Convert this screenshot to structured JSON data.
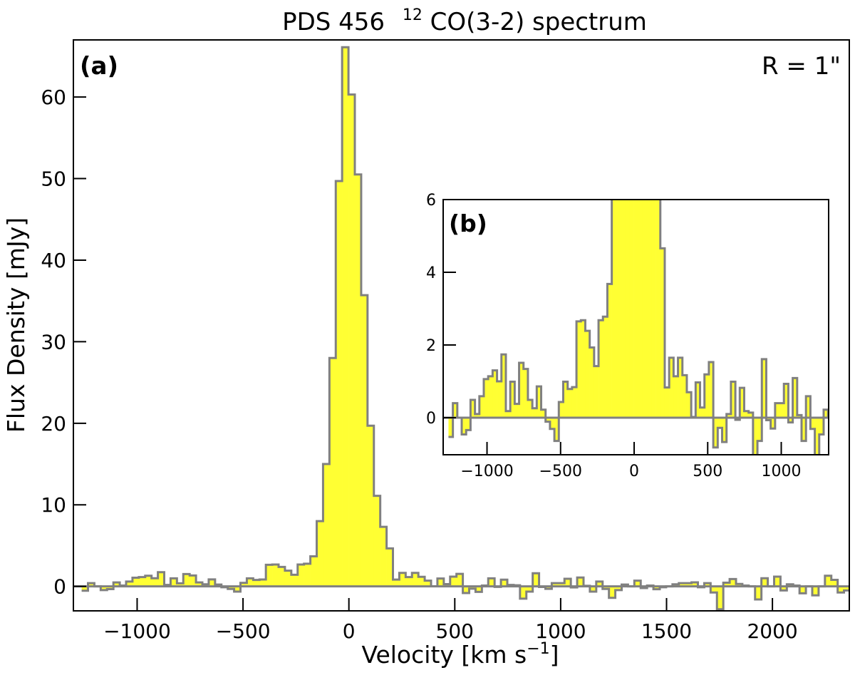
{
  "chart_data": {
    "type": "histogram-step",
    "title": {
      "prefix": "PDS 456",
      "superscript": "12",
      "suffix": "CO(3-2) spectrum"
    },
    "xlabel": "Velocity [km s",
    "xlabel_sup": "−1",
    "xlabel_end": "]",
    "ylabel": "Flux Density [mJy]",
    "panel_label": "(a)",
    "annotation": "R = 1\"",
    "xlim": [
      -1301,
      2363
    ],
    "ylim": [
      -3.0,
      67.0
    ],
    "xticks": [
      -1000,
      -500,
      0,
      500,
      1000,
      1500,
      2000
    ],
    "xtick_labels": [
      "−1000",
      "−500",
      "0",
      "500",
      "1000",
      "1500",
      "2000"
    ],
    "yticks": [
      0,
      10,
      20,
      30,
      40,
      50,
      60
    ],
    "ytick_labels": [
      "0",
      "10",
      "20",
      "30",
      "40",
      "50",
      "60"
    ],
    "bin_start": -1262,
    "bin_width": 30,
    "values": [
      -0.53,
      0.4,
      0,
      -0.46,
      -0.34,
      0.49,
      0.1,
      0.59,
      1.06,
      1.14,
      1.3,
      1.0,
      1.74,
      0.18,
      0.99,
      0.38,
      1.51,
      1.34,
      0.49,
      0.26,
      0.86,
      0.22,
      -0.11,
      -0.31,
      -0.64,
      0.43,
      0.99,
      0.79,
      0.84,
      2.65,
      2.68,
      2.39,
      1.93,
      1.42,
      2.68,
      2.78,
      3.68,
      8.0,
      15.0,
      28.0,
      49.7,
      66.1,
      60.3,
      50.5,
      35.7,
      19.7,
      11.1,
      7.3,
      4.66,
      0.83,
      1.65,
      1.14,
      1.65,
      1.17,
      0.7,
      0.02,
      0.97,
      0.28,
      1.19,
      1.53,
      -0.82,
      -0.28,
      -0.67,
      0.1,
      0.99,
      -0.06,
      0.82,
      0.18,
      0.14,
      -1.5,
      -0.64,
      1.61,
      -0.07,
      -0.3,
      0.4,
      0.4,
      0.93,
      -0.13,
      1.09,
      0.07,
      -0.64,
      0.59,
      -0.31,
      -1.4,
      -0.46,
      0.22,
      0,
      0.7,
      -0.2,
      0.1,
      -0.35,
      -0.1,
      0,
      0.25,
      0.4,
      0.4,
      0.5,
      -0.1,
      0.4,
      -0.75,
      -2.8,
      0.45,
      0.9,
      0.3,
      0.1,
      0,
      -1.6,
      1.0,
      0,
      1.2,
      -0.5,
      0.25,
      0.1,
      -0.85,
      0,
      -1.1,
      0,
      1.3,
      0.8,
      -0.75,
      -0.5,
      0
    ],
    "fill_color": "#ffff33",
    "line_color": "#808080",
    "inset": {
      "panel_label": "(b)",
      "xlim": [
        -1298,
        1322
      ],
      "ylim": [
        -1.02,
        6.0
      ],
      "xticks": [
        -1000,
        -500,
        0,
        500,
        1000
      ],
      "xtick_labels": [
        "−1000",
        "−500",
        "0",
        "500",
        "1000"
      ],
      "yticks": [
        0,
        2,
        4,
        6
      ],
      "ytick_labels": [
        "0",
        "2",
        "4",
        "6"
      ]
    }
  }
}
